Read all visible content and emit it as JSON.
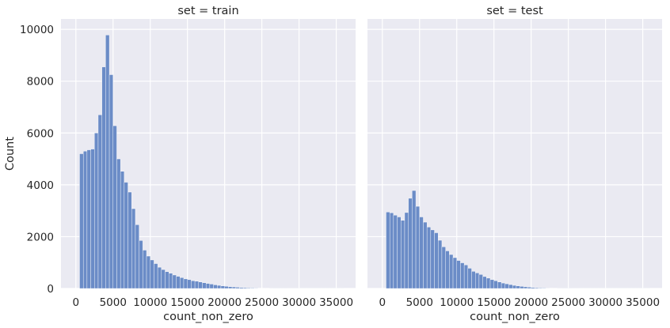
{
  "chart_data": [
    {
      "type": "bar",
      "title": "set = train",
      "xlabel": "count_non_zero",
      "ylabel": "Count",
      "xlim": [
        -2000,
        37600
      ],
      "ylim": [
        0,
        10400
      ],
      "xticks": [
        0,
        5000,
        10000,
        15000,
        20000,
        25000,
        30000,
        35000
      ],
      "xtick_labels": [
        "0",
        "5000",
        "10000",
        "15000",
        "20000",
        "25000",
        "30000",
        "35000"
      ],
      "yticks": [
        0,
        2000,
        4000,
        6000,
        8000,
        10000
      ],
      "ytick_labels": [
        "0",
        "2000",
        "4000",
        "6000",
        "8000",
        "10000"
      ],
      "bin_start": 500,
      "bin_width": 500,
      "values": [
        5200,
        5300,
        5350,
        5380,
        6000,
        6700,
        8550,
        9780,
        8250,
        6280,
        5000,
        4520,
        4100,
        3720,
        3080,
        2460,
        1850,
        1480,
        1250,
        1100,
        960,
        820,
        730,
        650,
        590,
        520,
        470,
        420,
        370,
        340,
        300,
        280,
        250,
        220,
        195,
        170,
        140,
        120,
        100,
        85,
        70,
        60,
        48,
        40,
        32,
        26,
        20,
        16,
        12,
        10,
        8,
        6,
        5,
        4,
        3,
        3,
        2,
        2,
        2,
        1,
        1,
        1,
        1,
        1,
        1,
        1,
        1,
        1,
        1,
        1,
        1
      ],
      "grid": true
    },
    {
      "type": "bar",
      "title": "set = test",
      "xlabel": "count_non_zero",
      "ylabel": "",
      "xlim": [
        -2000,
        37600
      ],
      "ylim": [
        0,
        10400
      ],
      "xticks": [
        0,
        5000,
        10000,
        15000,
        20000,
        25000,
        30000,
        35000
      ],
      "xtick_labels": [
        "0",
        "5000",
        "10000",
        "15000",
        "20000",
        "25000",
        "30000",
        "35000"
      ],
      "bin_start": 500,
      "bin_width": 500,
      "values": [
        2950,
        2920,
        2830,
        2760,
        2630,
        2930,
        3480,
        3780,
        3170,
        2760,
        2560,
        2370,
        2260,
        2150,
        1860,
        1610,
        1450,
        1310,
        1190,
        1080,
        990,
        910,
        780,
        660,
        600,
        540,
        460,
        400,
        340,
        300,
        250,
        210,
        180,
        150,
        120,
        100,
        80,
        65,
        52,
        40,
        30,
        24,
        18,
        14,
        11,
        8,
        6,
        5,
        4,
        3,
        2,
        2,
        1,
        1,
        1,
        1,
        1,
        1,
        1,
        1,
        1,
        1,
        1,
        1,
        1,
        1,
        1,
        1,
        1,
        1,
        1
      ],
      "grid": true
    }
  ],
  "colors": {
    "bar_fill": "#6b8cc7",
    "bar_edge": "#ffffff",
    "panel_bg": "#eaeaf2",
    "grid": "#ffffff",
    "text": "#262626"
  }
}
